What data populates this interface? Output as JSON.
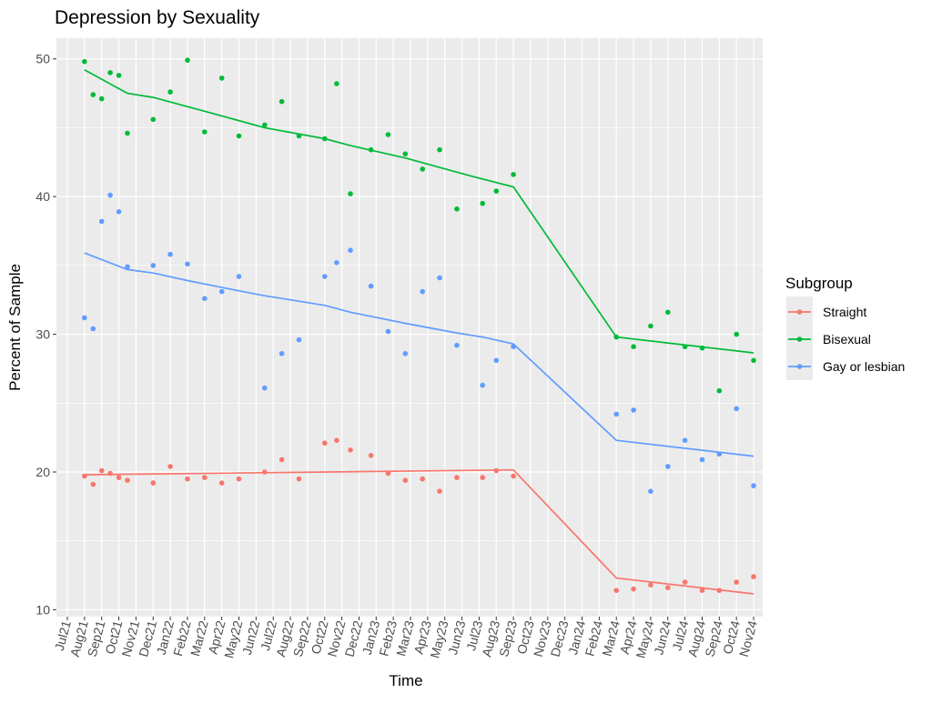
{
  "chart_data": {
    "type": "scatter",
    "title": "Depression by Sexuality",
    "xlabel": "Time",
    "ylabel": "Percent of Sample",
    "ylim": [
      9.5,
      51.5
    ],
    "yticks": [
      10,
      20,
      30,
      40,
      50
    ],
    "x_categories": [
      "Jul21",
      "Aug21",
      "Sep21",
      "Oct21",
      "Nov21",
      "Dec21",
      "Jan22",
      "Feb22",
      "Mar22",
      "Apr22",
      "May22",
      "Jun22",
      "Jul22",
      "Aug22",
      "Sep22",
      "Oct22",
      "Nov22",
      "Dec22",
      "Jan23",
      "Feb23",
      "Mar23",
      "Apr23",
      "May23",
      "Jun23",
      "Jul23",
      "Aug23",
      "Sep23",
      "Oct23",
      "Nov23",
      "Dec23",
      "Jan24",
      "Feb24",
      "Mar24",
      "Apr24",
      "May24",
      "Jun24",
      "Jul24",
      "Aug24",
      "Sep24",
      "Oct24",
      "Nov24"
    ],
    "grid": true,
    "legend": {
      "title": "Subgroup",
      "position": "right"
    },
    "series": [
      {
        "name": "Straight",
        "color": "#F8766D",
        "points": [
          [
            1.0,
            19.7
          ],
          [
            1.5,
            19.1
          ],
          [
            2.0,
            20.1
          ],
          [
            2.5,
            19.9
          ],
          [
            3.0,
            19.6
          ],
          [
            3.5,
            19.4
          ],
          [
            5.0,
            19.2
          ],
          [
            6.0,
            20.4
          ],
          [
            7.0,
            19.5
          ],
          [
            8.0,
            19.6
          ],
          [
            9.0,
            19.2
          ],
          [
            10.0,
            19.5
          ],
          [
            11.5,
            20.0
          ],
          [
            12.5,
            20.9
          ],
          [
            13.5,
            19.5
          ],
          [
            15.0,
            22.1
          ],
          [
            15.7,
            22.3
          ],
          [
            16.5,
            21.6
          ],
          [
            17.7,
            21.2
          ],
          [
            18.7,
            19.9
          ],
          [
            19.7,
            19.4
          ],
          [
            20.7,
            19.5
          ],
          [
            21.7,
            18.6
          ],
          [
            22.7,
            19.6
          ],
          [
            24.2,
            19.6
          ],
          [
            25.0,
            20.1
          ],
          [
            26.0,
            19.7
          ],
          [
            32.0,
            11.4
          ],
          [
            33.0,
            11.5
          ],
          [
            34.0,
            11.8
          ],
          [
            35.0,
            11.6
          ],
          [
            36.0,
            12.0
          ],
          [
            37.0,
            11.4
          ],
          [
            38.0,
            11.4
          ],
          [
            39.0,
            12.0
          ],
          [
            40.0,
            12.4
          ]
        ],
        "trend": [
          [
            1.0,
            19.8
          ],
          [
            26.0,
            20.15
          ],
          [
            32.0,
            12.3
          ],
          [
            40.0,
            11.15
          ]
        ]
      },
      {
        "name": "Bisexual",
        "color": "#00BA38",
        "points": [
          [
            1.0,
            49.8
          ],
          [
            1.5,
            47.4
          ],
          [
            2.0,
            47.1
          ],
          [
            2.5,
            49.0
          ],
          [
            3.0,
            48.8
          ],
          [
            3.5,
            44.6
          ],
          [
            5.0,
            45.6
          ],
          [
            6.0,
            47.6
          ],
          [
            7.0,
            49.9
          ],
          [
            8.0,
            44.7
          ],
          [
            9.0,
            48.6
          ],
          [
            10.0,
            44.4
          ],
          [
            11.5,
            45.2
          ],
          [
            12.5,
            46.9
          ],
          [
            13.5,
            44.4
          ],
          [
            15.0,
            44.2
          ],
          [
            15.7,
            48.2
          ],
          [
            16.5,
            40.2
          ],
          [
            17.7,
            43.4
          ],
          [
            18.7,
            44.5
          ],
          [
            19.7,
            43.1
          ],
          [
            20.7,
            42.0
          ],
          [
            21.7,
            43.4
          ],
          [
            22.7,
            39.1
          ],
          [
            24.2,
            39.5
          ],
          [
            25.0,
            40.4
          ],
          [
            26.0,
            41.6
          ],
          [
            32.0,
            29.8
          ],
          [
            33.0,
            29.1
          ],
          [
            34.0,
            30.6
          ],
          [
            35.0,
            31.6
          ],
          [
            36.0,
            29.1
          ],
          [
            37.0,
            29.0
          ],
          [
            38.0,
            25.9
          ],
          [
            39.0,
            30.0
          ],
          [
            40.0,
            28.1
          ]
        ],
        "trend": [
          [
            1.0,
            49.2
          ],
          [
            3.5,
            47.5
          ],
          [
            5.0,
            47.2
          ],
          [
            8.0,
            46.2
          ],
          [
            11.5,
            45.0
          ],
          [
            15.0,
            44.2
          ],
          [
            16.5,
            43.7
          ],
          [
            19.7,
            42.8
          ],
          [
            23.5,
            41.5
          ],
          [
            26.0,
            40.7
          ],
          [
            32.0,
            29.8
          ],
          [
            40.0,
            28.65
          ]
        ]
      },
      {
        "name": "Gay or lesbian",
        "color": "#619CFF",
        "points": [
          [
            1.0,
            31.2
          ],
          [
            1.5,
            30.4
          ],
          [
            2.0,
            38.2
          ],
          [
            2.5,
            40.1
          ],
          [
            3.0,
            38.9
          ],
          [
            3.5,
            34.9
          ],
          [
            5.0,
            35.0
          ],
          [
            6.0,
            35.8
          ],
          [
            7.0,
            35.1
          ],
          [
            8.0,
            32.6
          ],
          [
            9.0,
            33.1
          ],
          [
            10.0,
            34.2
          ],
          [
            11.5,
            26.1
          ],
          [
            12.5,
            28.6
          ],
          [
            13.5,
            29.6
          ],
          [
            15.0,
            34.2
          ],
          [
            15.7,
            35.2
          ],
          [
            16.5,
            36.1
          ],
          [
            17.7,
            33.5
          ],
          [
            18.7,
            30.2
          ],
          [
            19.7,
            28.6
          ],
          [
            20.7,
            33.1
          ],
          [
            21.7,
            34.1
          ],
          [
            22.7,
            29.2
          ],
          [
            24.2,
            26.3
          ],
          [
            25.0,
            28.1
          ],
          [
            26.0,
            29.1
          ],
          [
            32.0,
            24.2
          ],
          [
            33.0,
            24.5
          ],
          [
            34.0,
            18.6
          ],
          [
            35.0,
            20.4
          ],
          [
            36.0,
            22.3
          ],
          [
            37.0,
            20.9
          ],
          [
            38.0,
            21.3
          ],
          [
            39.0,
            24.6
          ],
          [
            40.0,
            19.0
          ]
        ],
        "trend": [
          [
            1.0,
            35.9
          ],
          [
            3.5,
            34.7
          ],
          [
            5.0,
            34.45
          ],
          [
            7.0,
            33.9
          ],
          [
            9.0,
            33.4
          ],
          [
            11.5,
            32.8
          ],
          [
            13.5,
            32.4
          ],
          [
            15.0,
            32.1
          ],
          [
            16.5,
            31.6
          ],
          [
            19.7,
            30.8
          ],
          [
            22.7,
            30.1
          ],
          [
            24.2,
            29.8
          ],
          [
            26.0,
            29.3
          ],
          [
            32.0,
            22.3
          ],
          [
            40.0,
            21.15
          ]
        ]
      }
    ]
  }
}
